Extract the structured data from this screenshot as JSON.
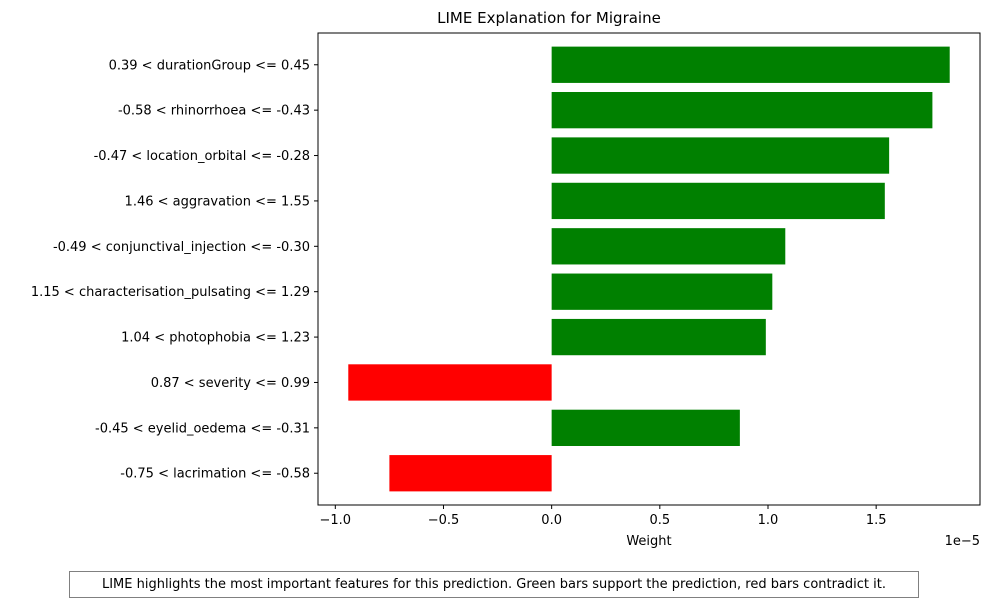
{
  "chart_data": {
    "type": "bar",
    "orientation": "horizontal",
    "title": "LIME Explanation for Migraine",
    "xlabel": "Weight",
    "x_scale_label": "1e−5",
    "xlim": [
      -1.08,
      1.98
    ],
    "xticks": [
      -1.0,
      -0.5,
      0.0,
      0.5,
      1.0,
      1.5
    ],
    "xtick_labels": [
      "−1.0",
      "−0.5",
      "0.0",
      "0.5",
      "1.0",
      "1.5"
    ],
    "grid": false,
    "categories": [
      "0.39 < durationGroup <= 0.45",
      "-0.58 < rhinorrhoea <= -0.43",
      "-0.47 < location_orbital <= -0.28",
      "1.46 < aggravation <= 1.55",
      "-0.49 < conjunctival_injection <= -0.30",
      "1.15 < characterisation_pulsating <= 1.29",
      "1.04 < photophobia <= 1.23",
      "0.87 < severity <= 0.99",
      "-0.45 < eyelid_oedema <= -0.31",
      "-0.75 < lacrimation <= -0.58"
    ],
    "values": [
      1.84,
      1.76,
      1.56,
      1.54,
      1.08,
      1.02,
      0.99,
      -0.94,
      0.87,
      -0.75
    ],
    "colors": {
      "positive": "#008000",
      "negative": "#ff0000"
    }
  },
  "caption": "LIME highlights the most important features for this prediction. Green bars support the prediction, red bars contradict it."
}
